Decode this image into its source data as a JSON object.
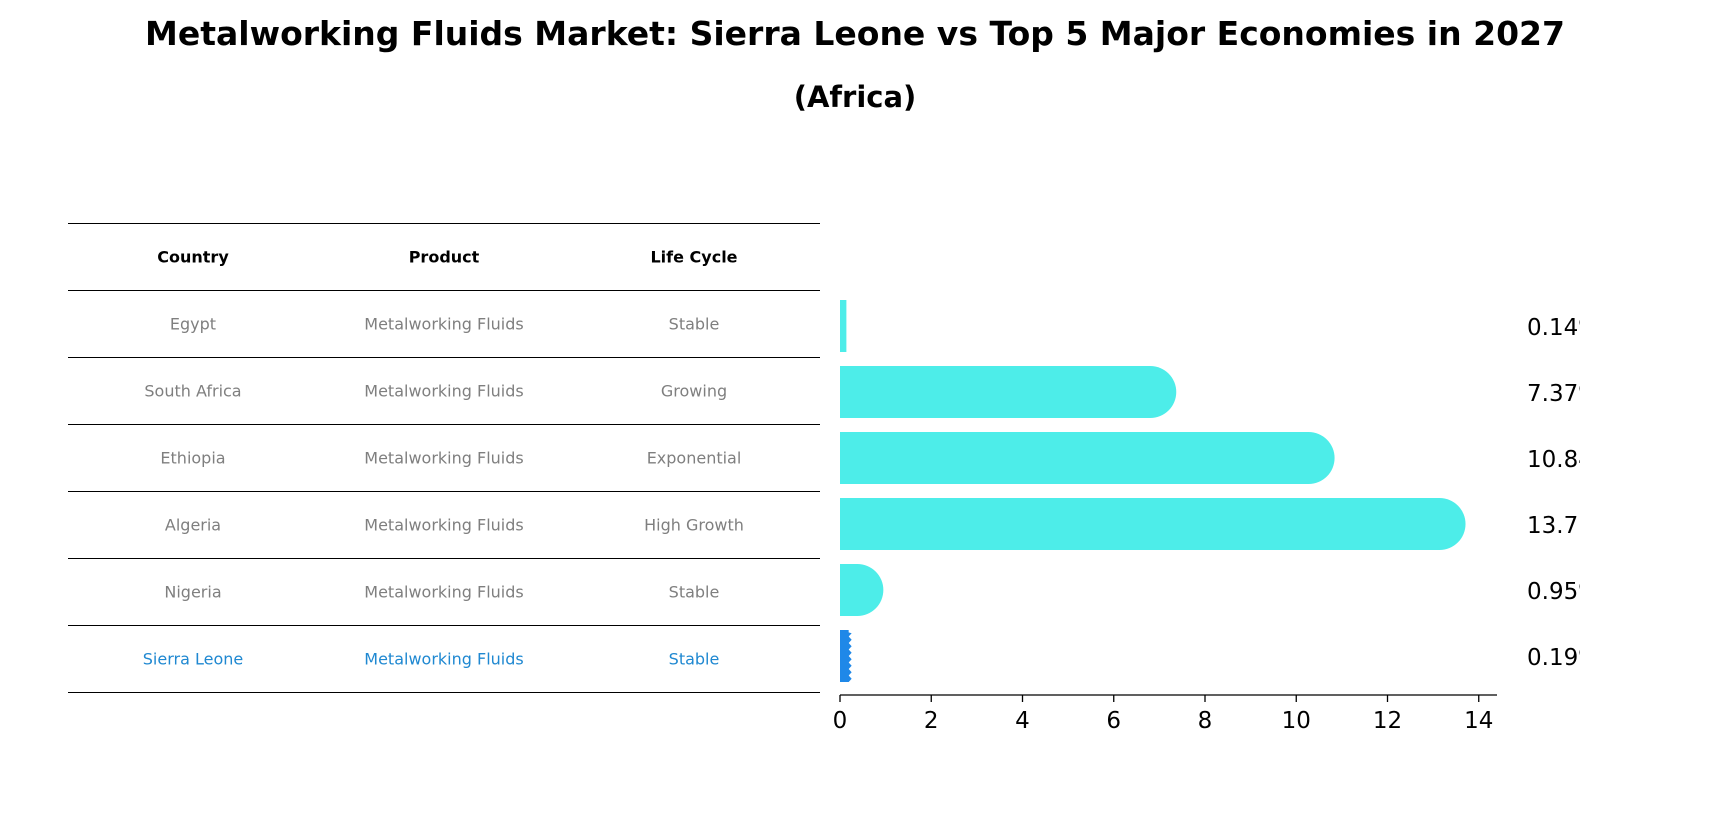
{
  "title": "Metalworking Fluids Market: Sierra Leone vs Top 5 Major Economies in 2027",
  "subtitle": "(Africa)",
  "table": {
    "headers": [
      "Country",
      "Product",
      "Life Cycle"
    ],
    "rows": [
      [
        "Egypt",
        "Metalworking Fluids",
        "Stable"
      ],
      [
        "South Africa",
        "Metalworking Fluids",
        "Growing"
      ],
      [
        "Ethiopia",
        "Metalworking Fluids",
        "Exponential"
      ],
      [
        "Algeria",
        "Metalworking Fluids",
        "High Growth"
      ],
      [
        "Nigeria",
        "Metalworking Fluids",
        "Stable"
      ],
      [
        "Sierra Leone",
        "Metalworking Fluids",
        "Stable"
      ]
    ],
    "highlight_row": 5
  },
  "chart_data": {
    "type": "bar",
    "orientation": "horizontal",
    "categories": [
      "Egypt",
      "South Africa",
      "Ethiopia",
      "Algeria",
      "Nigeria",
      "Sierra Leone"
    ],
    "values": [
      0.14,
      7.37,
      10.84,
      13.71,
      0.95,
      0.19
    ],
    "value_labels": [
      "0.14%",
      "7.37%",
      "10.84%",
      "13.71%",
      "0.95%",
      "0.19%"
    ],
    "xlim": [
      0,
      14.4
    ],
    "xticks": [
      0,
      2,
      4,
      6,
      8,
      10,
      12,
      14
    ],
    "grid": false,
    "colors": {
      "bar": "#4dede9",
      "highlight": "#1f88e8"
    },
    "highlight_index": 5
  }
}
